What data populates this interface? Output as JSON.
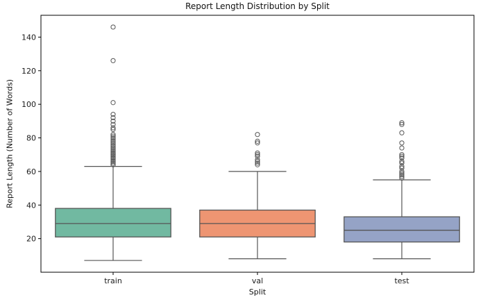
{
  "chart_data": {
    "type": "box",
    "title": "Report Length Distribution by Split",
    "xlabel": "Split",
    "ylabel": "Report Length (Number of Words)",
    "categories": [
      "train",
      "val",
      "test"
    ],
    "ylim": [
      0,
      153
    ],
    "y_ticks": [
      20,
      40,
      60,
      80,
      100,
      120,
      140
    ],
    "grid": false,
    "line_color": "#555555",
    "spine_color": "#000000",
    "text_color": "#1a1a1a",
    "series": [
      {
        "name": "train",
        "color": "#71b9a1",
        "whisker_low": 7,
        "q1": 21,
        "median": 29,
        "q3": 38,
        "whisker_high": 63,
        "outliers": [
          64,
          64,
          65,
          65,
          66,
          66,
          67,
          67,
          68,
          68,
          69,
          69,
          70,
          70,
          71,
          71,
          72,
          72,
          73,
          74,
          74,
          75,
          76,
          77,
          78,
          79,
          80,
          81,
          82,
          85,
          86,
          88,
          90,
          92,
          94,
          101,
          126,
          146
        ]
      },
      {
        "name": "val",
        "color": "#ee9572",
        "whisker_low": 8,
        "q1": 21,
        "median": 29,
        "q3": 37,
        "whisker_high": 60,
        "outliers": [
          64,
          65,
          66,
          67,
          69,
          70,
          71,
          77,
          78,
          82
        ]
      },
      {
        "name": "test",
        "color": "#95a3c6",
        "whisker_low": 8,
        "q1": 18,
        "median": 25,
        "q3": 33,
        "whisker_high": 55,
        "outliers": [
          56,
          57,
          58,
          59,
          60,
          62,
          63,
          65,
          66,
          68,
          69,
          70,
          74,
          77,
          83,
          88,
          89
        ]
      }
    ]
  }
}
